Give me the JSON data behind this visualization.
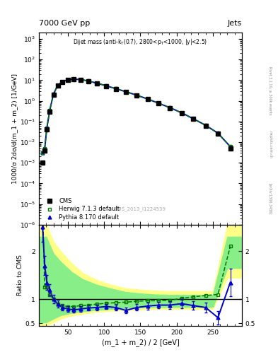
{
  "title_left": "7000 GeV pp",
  "title_right": "Jets",
  "annotation": "Dijet mass (anti-k$_{T}$(0.7), 2800<p$_{T}$<1000, |y|<2.5)",
  "cms_label": "CMS_2013_I1224539",
  "ylabel_main": "1000/σ 2dσ/d(m_1 + m_2) [1/GeV]",
  "ylabel_ratio": "Ratio to CMS",
  "xlabel": "(m_1 + m_2) / 2 [GeV]",
  "xlim": [
    10,
    290
  ],
  "ylim_main": [
    1e-06,
    2000
  ],
  "ylim_ratio": [
    0.45,
    2.55
  ],
  "cms_x": [
    15,
    18,
    21,
    25,
    30,
    36,
    42,
    50,
    58,
    68,
    78,
    90,
    103,
    116,
    130,
    145,
    160,
    175,
    191,
    207,
    223,
    240,
    257,
    274
  ],
  "cms_y": [
    0.001,
    0.004,
    0.04,
    0.3,
    2.0,
    5.5,
    8.0,
    10.5,
    11.0,
    10.5,
    9.0,
    7.0,
    5.2,
    3.8,
    2.7,
    1.8,
    1.2,
    0.75,
    0.45,
    0.25,
    0.13,
    0.06,
    0.025,
    0.005
  ],
  "herwig_x": [
    15,
    18,
    21,
    25,
    30,
    36,
    42,
    50,
    58,
    68,
    78,
    90,
    103,
    116,
    130,
    145,
    160,
    175,
    191,
    207,
    223,
    240,
    257,
    274
  ],
  "herwig_y": [
    0.003,
    0.005,
    0.05,
    0.35,
    2.1,
    5.6,
    8.2,
    10.6,
    11.1,
    10.6,
    9.1,
    7.1,
    5.3,
    3.85,
    2.75,
    1.85,
    1.22,
    0.76,
    0.46,
    0.26,
    0.135,
    0.065,
    0.027,
    0.006
  ],
  "pythia_x": [
    15,
    18,
    21,
    25,
    30,
    36,
    42,
    50,
    58,
    68,
    78,
    90,
    103,
    116,
    130,
    145,
    160,
    175,
    191,
    207,
    223,
    240,
    257,
    274
  ],
  "pythia_y": [
    0.003,
    0.005,
    0.05,
    0.35,
    2.1,
    5.6,
    8.2,
    10.6,
    11.1,
    10.6,
    9.1,
    7.1,
    5.3,
    3.85,
    2.75,
    1.85,
    1.22,
    0.76,
    0.46,
    0.26,
    0.135,
    0.065,
    0.027,
    0.006
  ],
  "ratio_x": [
    15,
    18,
    21,
    25,
    30,
    36,
    42,
    50,
    58,
    68,
    78,
    90,
    103,
    116,
    130,
    145,
    160,
    175,
    191,
    207,
    223,
    240,
    257,
    274
  ],
  "herwig_ratio": [
    3.0,
    1.25,
    1.25,
    1.1,
    1.0,
    0.9,
    0.87,
    0.85,
    0.85,
    0.87,
    0.88,
    0.9,
    0.92,
    0.93,
    0.94,
    0.96,
    0.97,
    0.97,
    0.98,
    1.02,
    1.05,
    1.08,
    1.1,
    2.1
  ],
  "pythia_ratio": [
    2.5,
    1.7,
    1.35,
    1.2,
    1.0,
    0.9,
    0.83,
    0.8,
    0.78,
    0.8,
    0.82,
    0.83,
    0.85,
    0.83,
    0.77,
    0.83,
    0.86,
    0.88,
    0.88,
    0.91,
    0.87,
    0.83,
    0.62,
    1.35
  ],
  "pythia_ratio_err": [
    0.3,
    0.2,
    0.15,
    0.12,
    0.09,
    0.07,
    0.06,
    0.055,
    0.055,
    0.055,
    0.055,
    0.055,
    0.055,
    0.06,
    0.06,
    0.065,
    0.07,
    0.07,
    0.08,
    0.09,
    0.09,
    0.1,
    0.14,
    0.28
  ],
  "yellow_band_x": [
    10,
    15,
    20,
    30,
    40,
    55,
    70,
    90,
    110,
    130,
    150,
    170,
    190,
    210,
    230,
    250,
    270,
    290
  ],
  "yellow_band_lo": [
    0.45,
    0.45,
    0.45,
    0.52,
    0.6,
    0.66,
    0.7,
    0.74,
    0.76,
    0.78,
    0.79,
    0.8,
    0.8,
    0.8,
    0.8,
    0.8,
    1.45,
    1.45
  ],
  "yellow_band_hi": [
    2.55,
    2.55,
    2.55,
    2.2,
    2.0,
    1.75,
    1.55,
    1.4,
    1.3,
    1.23,
    1.2,
    1.18,
    1.17,
    1.17,
    1.17,
    1.17,
    2.55,
    2.55
  ],
  "green_band_x": [
    10,
    15,
    20,
    30,
    40,
    55,
    70,
    90,
    110,
    130,
    150,
    170,
    190,
    210,
    230,
    250,
    270,
    290
  ],
  "green_band_lo": [
    0.52,
    0.52,
    0.52,
    0.6,
    0.67,
    0.72,
    0.75,
    0.78,
    0.8,
    0.82,
    0.83,
    0.84,
    0.84,
    0.84,
    0.84,
    0.84,
    1.65,
    1.65
  ],
  "green_band_hi": [
    2.3,
    2.3,
    2.3,
    1.95,
    1.78,
    1.57,
    1.42,
    1.3,
    1.22,
    1.15,
    1.12,
    1.1,
    1.09,
    1.09,
    1.09,
    1.09,
    2.3,
    2.3
  ],
  "color_cms": "#000000",
  "color_herwig": "#007700",
  "color_pythia": "#0000cc",
  "color_yellow": "#ffff88",
  "color_green": "#88ee88",
  "background_color": "#ffffff"
}
